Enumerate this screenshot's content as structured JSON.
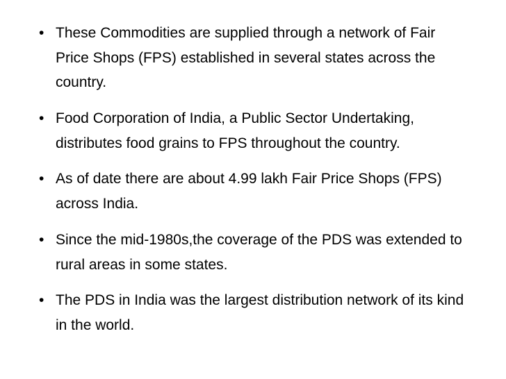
{
  "slide": {
    "background_color": "#ffffff",
    "text_color": "#000000",
    "font_family": "Arial",
    "font_size_pt": 16,
    "line_height": 1.7,
    "bullets": [
      " These Commodities are supplied through a network of Fair Price Shops (FPS) established in several states across the country.",
      "Food Corporation of India, a Public Sector Undertaking, distributes food grains to FPS throughout the country.",
      "As of date there are about 4.99 lakh Fair Price Shops (FPS) across India.",
      "Since the mid-1980s,the coverage of the PDS was extended to rural areas in some states.",
      "The PDS in India was the largest distribution network of its kind in the world."
    ]
  }
}
